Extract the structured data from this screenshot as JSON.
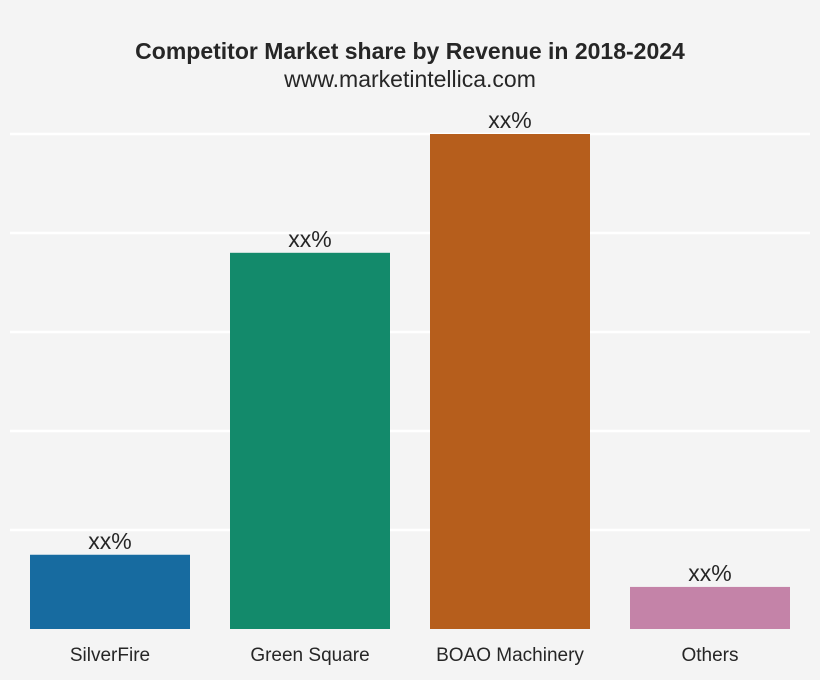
{
  "chart_data": {
    "type": "bar",
    "title": "Competitor Market share by Revenue in 2018-2024",
    "subtitle": "www.marketintellica.com",
    "xlabel": "",
    "ylabel": "",
    "categories": [
      "SilverFire",
      "Green Square",
      "BOAO Machinery",
      "Others"
    ],
    "values": [
      15,
      76,
      100,
      8.5
    ],
    "data_labels": [
      "xx%",
      "xx%",
      "xx%",
      "xx%"
    ],
    "colors": [
      "#176ba0",
      "#138a6b",
      "#b65e1c",
      "#c483a8"
    ],
    "ylim": [
      0,
      100
    ],
    "y_gridlines": [
      20,
      40,
      60,
      80,
      100
    ],
    "grid": true,
    "y_tick_labels_visible": false,
    "legend": "none"
  }
}
